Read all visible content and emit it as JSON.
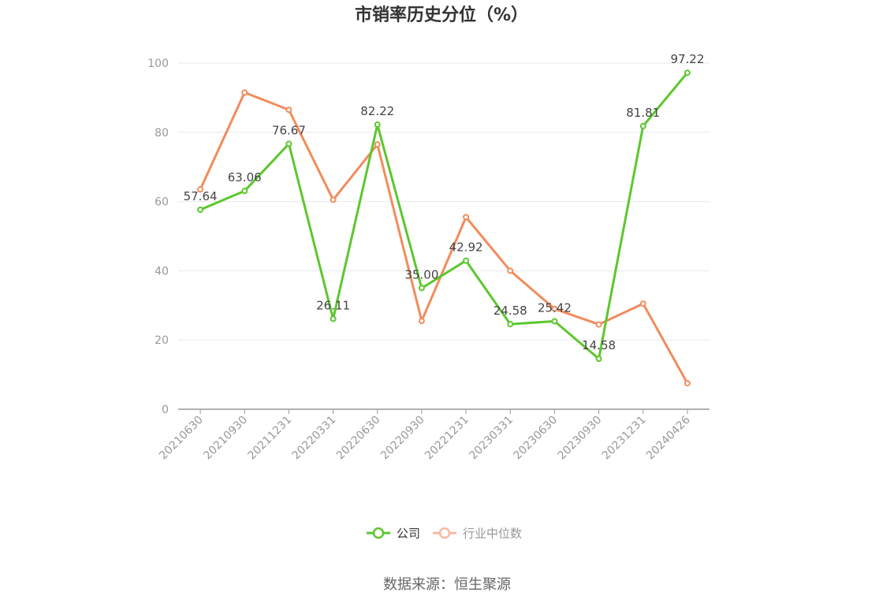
{
  "chart_data": {
    "type": "line",
    "title": "市销率历史分位（%）",
    "categories": [
      "20210630",
      "20210930",
      "20211231",
      "20220331",
      "20220630",
      "20220930",
      "20221231",
      "20230331",
      "20230630",
      "20230930",
      "20231231",
      "20240426"
    ],
    "ylim": [
      0,
      100
    ],
    "yticks": [
      0,
      20,
      40,
      60,
      80,
      100
    ],
    "grid": true,
    "legend_position": "bottom",
    "series": [
      {
        "name": "公司",
        "color": "#5cc72e",
        "values": [
          57.64,
          63.06,
          76.67,
          26.11,
          82.22,
          35.0,
          42.92,
          24.58,
          25.42,
          14.58,
          81.81,
          97.22
        ],
        "labels": [
          "57.64",
          "63.06",
          "76.67",
          "26.11",
          "82.22",
          "35.00",
          "42.92",
          "24.58",
          "25.42",
          "14.58",
          "81.81",
          "97.22"
        ]
      },
      {
        "name": "行业中位数",
        "color": "#f28c5c",
        "values": [
          63.5,
          91.5,
          86.5,
          60.5,
          76.5,
          25.5,
          55.5,
          40.0,
          29.0,
          24.5,
          30.5,
          7.5
        ]
      }
    ],
    "source": "数据来源：恒生聚源"
  }
}
